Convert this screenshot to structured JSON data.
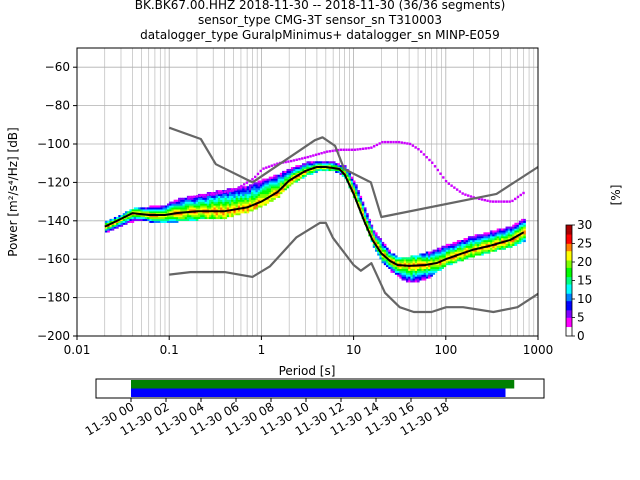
{
  "chart_data": {
    "type": "ppsd",
    "title_lines": [
      "BK.BK67.00.HHZ   2018-11-30 -- 2018-11-30  (36/36 segments)",
      "sensor_type CMG-3T sensor_sn T310003",
      "datalogger_type GuralpMinimus+ datalogger_sn MINP-E059"
    ],
    "xlabel": "Period [s]",
    "ylabel": "Power [m²/s⁴/Hz] [dB]",
    "xscale": "log",
    "xlim": [
      0.01,
      1000
    ],
    "ylim": [
      -200,
      -50
    ],
    "x_ticks": [
      0.01,
      0.1,
      1,
      10,
      100,
      1000
    ],
    "x_tick_labels": [
      "0.01",
      "0.1",
      "1",
      "10",
      "100",
      "1000"
    ],
    "y_ticks": [
      -200,
      -180,
      -160,
      -140,
      -120,
      -100,
      -80,
      -60
    ],
    "y_tick_labels": [
      "−200",
      "−180",
      "−160",
      "−140",
      "−120",
      "−100",
      "−80",
      "−60"
    ],
    "grid": true,
    "colorbar": {
      "label": "[%]",
      "min": 0,
      "max": 30,
      "ticks": [
        0,
        5,
        10,
        15,
        20,
        25,
        30
      ],
      "tick_labels": [
        "0",
        "5",
        "10",
        "15",
        "20",
        "25",
        "30"
      ],
      "colors": [
        "#ffffff",
        "#ff00ff",
        "#0000ff",
        "#00ffff",
        "#00ff00",
        "#ffff00",
        "#ff8800",
        "#ff0000",
        "#aa0000"
      ]
    },
    "series": [
      {
        "role": "noise-model-high",
        "color": "#666666",
        "x": [
          0.1,
          0.22,
          0.32,
          0.8,
          3.8,
          4.6,
          6.3,
          7.9,
          15.4,
          20,
          354.8,
          1000
        ],
        "y": [
          -91.5,
          -97.4,
          -110.5,
          -120,
          -98,
          -96.5,
          -101,
          -113,
          -120,
          -138,
          -126,
          -112
        ]
      },
      {
        "role": "noise-model-low",
        "color": "#666666",
        "x": [
          0.1,
          0.17,
          0.4,
          0.8,
          1.24,
          2.4,
          4.3,
          5,
          6,
          10,
          12,
          15.6,
          21.9,
          31.6,
          45,
          70,
          101,
          154,
          328,
          600,
          1000
        ],
        "y": [
          -168,
          -166.7,
          -166.7,
          -169.2,
          -163.7,
          -148.6,
          -141.1,
          -141.1,
          -149,
          -163,
          -166,
          -162.1,
          -177.5,
          -185,
          -187.5,
          -187.5,
          -185,
          -185,
          -187.5,
          -185,
          -178
        ]
      },
      {
        "role": "mode",
        "color": "#000000",
        "x": [
          0.02,
          0.03,
          0.04,
          0.06,
          0.09,
          0.12,
          0.2,
          0.4,
          0.7,
          1,
          1.5,
          2,
          3,
          4,
          5,
          6,
          7,
          8,
          10,
          13,
          16,
          20,
          25,
          30,
          40,
          60,
          80,
          100,
          150,
          200,
          300,
          500,
          700
        ],
        "y": [
          -143,
          -139,
          -136,
          -137,
          -137,
          -136,
          -135,
          -135,
          -133,
          -130,
          -125,
          -119,
          -114,
          -112,
          -112,
          -112.5,
          -113,
          -116,
          -126,
          -140,
          -150,
          -157,
          -161,
          -163,
          -163.5,
          -163,
          -162,
          -160,
          -157,
          -155,
          -153,
          -150,
          -146
        ]
      }
    ],
    "density_cloud": {
      "x": [
        0.02,
        0.03,
        0.04,
        0.06,
        0.09,
        0.12,
        0.2,
        0.4,
        0.7,
        1,
        1.5,
        2,
        3,
        4,
        5,
        6,
        7,
        8,
        10,
        13,
        16,
        20,
        25,
        30,
        40,
        60,
        80,
        100,
        150,
        200,
        300,
        500,
        700
      ],
      "y_low": [
        -146,
        -142,
        -140,
        -140,
        -141,
        -140,
        -139,
        -138,
        -135,
        -132,
        -127,
        -121,
        -116,
        -114,
        -114,
        -114,
        -115,
        -118,
        -128,
        -142,
        -153,
        -161,
        -166,
        -169,
        -172,
        -170,
        -166,
        -163,
        -160,
        -158,
        -156,
        -153,
        -150
      ],
      "y_high": [
        -141,
        -137,
        -134,
        -133,
        -132,
        -129,
        -127,
        -124,
        -122,
        -119,
        -116,
        -113,
        -110,
        -109,
        -109,
        -110,
        -111,
        -112,
        -120,
        -134,
        -145,
        -151,
        -157,
        -160,
        -159,
        -157,
        -155,
        -153,
        -150,
        -148,
        -146,
        -143,
        -139
      ]
    },
    "sparse_trace": {
      "color": "#cc00ff",
      "x": [
        0.15,
        0.3,
        0.5,
        0.8,
        1,
        1.5,
        2,
        3,
        5,
        7,
        10,
        15,
        20,
        25,
        30,
        40,
        50,
        70,
        100,
        150,
        200,
        300,
        500,
        700
      ],
      "y": [
        -128,
        -126,
        -124,
        -118,
        -113,
        -110,
        -109,
        -107,
        -104,
        -103,
        -103,
        -102,
        -99,
        -99,
        -99,
        -100,
        -103,
        -110,
        -120,
        -126,
        -128,
        -130,
        -130,
        -125
      ]
    },
    "timeline": {
      "tick_labels": [
        "11-30 00",
        "11-30 02",
        "11-30 04",
        "11-30 06",
        "11-30 08",
        "11-30 10",
        "11-30 12",
        "11-30 14",
        "11-30 16",
        "11-30 18"
      ],
      "range_hours": [
        -2,
        23.6
      ],
      "bars": [
        {
          "color": "#008000",
          "start_hour": 0,
          "end_hour": 21.9
        },
        {
          "color": "#0000ff",
          "start_hour": 0,
          "end_hour": 21.4
        }
      ]
    }
  }
}
